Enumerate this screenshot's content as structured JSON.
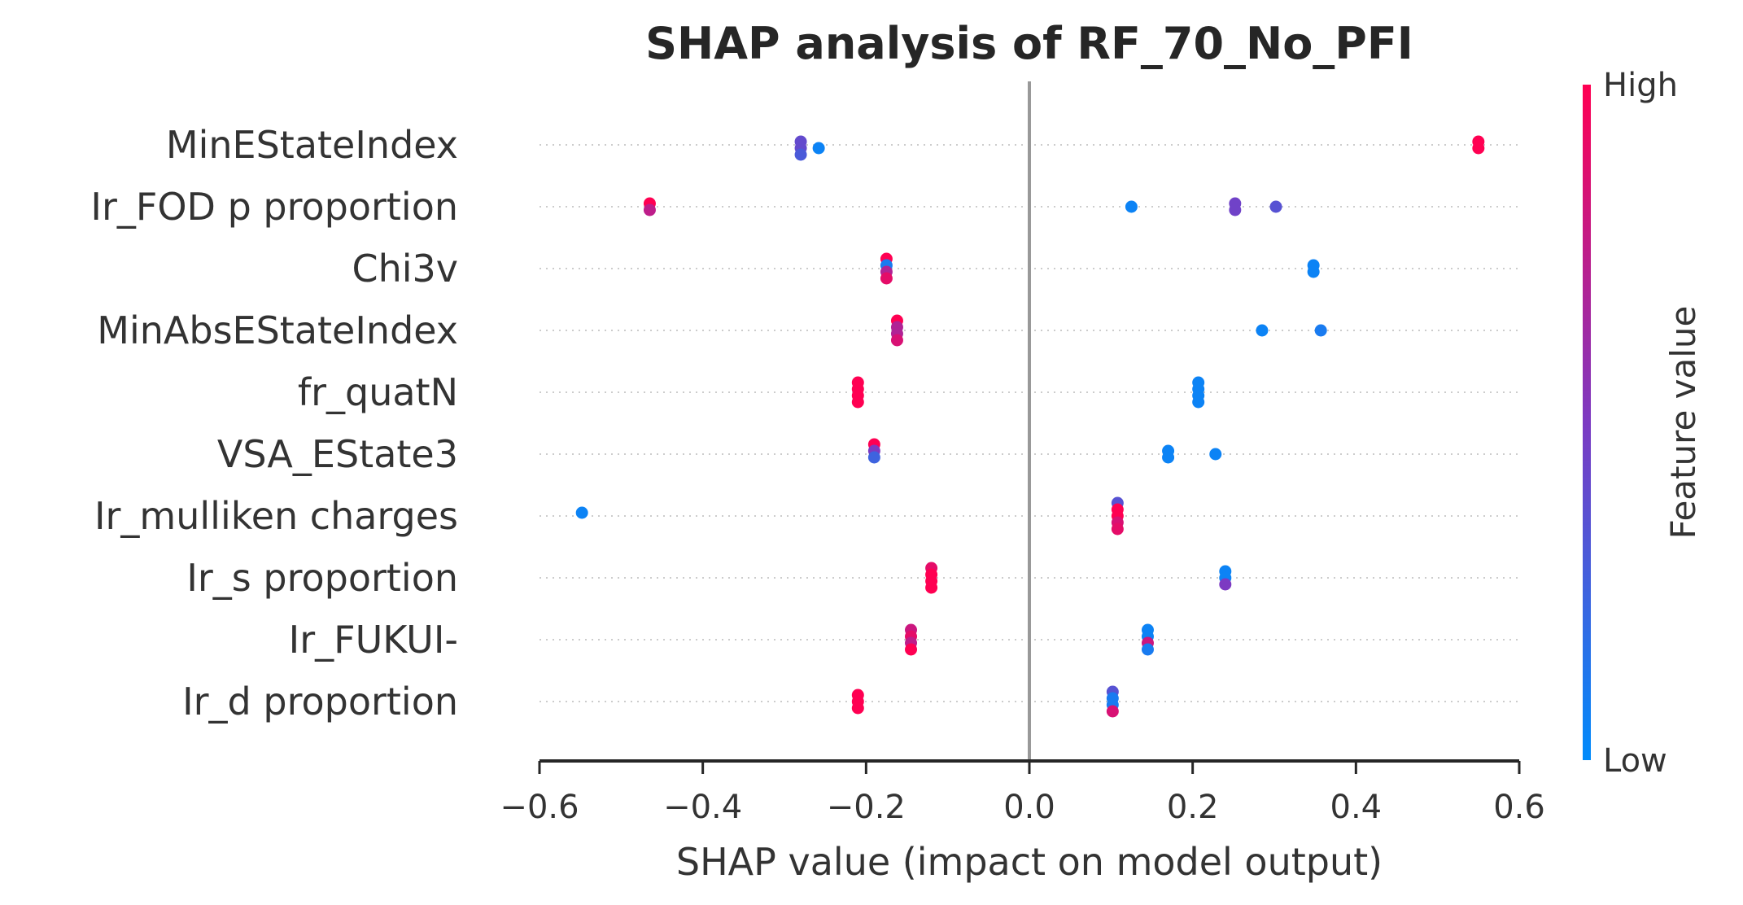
{
  "chart_data": {
    "type": "scatter",
    "subtype": "shap-beeswarm",
    "title": "SHAP analysis of RF_70_No_PFI",
    "xlabel": "SHAP value (impact on model output)",
    "ylabel": "",
    "xlim": [
      -0.6,
      0.6
    ],
    "xticks": [
      -0.6,
      -0.4,
      -0.2,
      0.0,
      0.2,
      0.4,
      0.6
    ],
    "xtick_labels": [
      "−0.6",
      "−0.4",
      "−0.2",
      "0.0",
      "0.2",
      "0.4",
      "0.6"
    ],
    "zero_line": 0.0,
    "colorbar": {
      "label": "Feature value",
      "high_label": "High",
      "low_label": "Low",
      "low_color": "#008bfb",
      "mid_color": "#7c3ac2",
      "high_color": "#ff0052"
    },
    "features": [
      {
        "name": "MinEStateIndex",
        "points": [
          {
            "x": -0.28,
            "dy": -0.5,
            "v": 0.4
          },
          {
            "x": -0.28,
            "dy": 0.5,
            "v": 0.4
          },
          {
            "x": -0.28,
            "dy": 1.5,
            "v": 0.3
          },
          {
            "x": -0.258,
            "dy": 0.5,
            "v": 0.05
          },
          {
            "x": 0.55,
            "dy": -0.5,
            "v": 1.0
          },
          {
            "x": 0.55,
            "dy": 0.5,
            "v": 1.0
          }
        ]
      },
      {
        "name": "Ir_FOD p proportion",
        "points": [
          {
            "x": -0.465,
            "dy": -0.5,
            "v": 1.0
          },
          {
            "x": -0.465,
            "dy": 0.5,
            "v": 0.75
          },
          {
            "x": 0.125,
            "dy": 0.0,
            "v": 0.05
          },
          {
            "x": 0.252,
            "dy": -0.5,
            "v": 0.45
          },
          {
            "x": 0.252,
            "dy": 0.5,
            "v": 0.45
          },
          {
            "x": 0.302,
            "dy": 0.0,
            "v": 0.35
          }
        ]
      },
      {
        "name": "Chi3v",
        "points": [
          {
            "x": -0.175,
            "dy": -1.5,
            "v": 1.0
          },
          {
            "x": -0.175,
            "dy": -0.5,
            "v": 0.1
          },
          {
            "x": -0.175,
            "dy": 0.5,
            "v": 0.7
          },
          {
            "x": -0.175,
            "dy": 1.5,
            "v": 0.9
          },
          {
            "x": 0.348,
            "dy": -0.5,
            "v": 0.05
          },
          {
            "x": 0.348,
            "dy": 0.5,
            "v": 0.05
          }
        ]
      },
      {
        "name": "MinAbsEStateIndex",
        "points": [
          {
            "x": -0.162,
            "dy": -1.5,
            "v": 1.0
          },
          {
            "x": -0.162,
            "dy": -0.5,
            "v": 0.7
          },
          {
            "x": -0.162,
            "dy": 0.5,
            "v": 0.7
          },
          {
            "x": -0.162,
            "dy": 1.5,
            "v": 0.85
          },
          {
            "x": 0.285,
            "dy": 0.0,
            "v": 0.05
          },
          {
            "x": 0.357,
            "dy": 0.0,
            "v": 0.1
          }
        ]
      },
      {
        "name": "fr_quatN",
        "points": [
          {
            "x": -0.21,
            "dy": -1.5,
            "v": 1.0
          },
          {
            "x": -0.21,
            "dy": -0.5,
            "v": 1.0
          },
          {
            "x": -0.21,
            "dy": 0.5,
            "v": 1.0
          },
          {
            "x": -0.21,
            "dy": 1.5,
            "v": 1.0
          },
          {
            "x": 0.207,
            "dy": -1.5,
            "v": 0.05
          },
          {
            "x": 0.207,
            "dy": -0.5,
            "v": 0.05
          },
          {
            "x": 0.207,
            "dy": 0.5,
            "v": 0.05
          },
          {
            "x": 0.207,
            "dy": 1.5,
            "v": 0.05
          }
        ]
      },
      {
        "name": "VSA_EState3",
        "points": [
          {
            "x": -0.19,
            "dy": -1.5,
            "v": 1.0
          },
          {
            "x": -0.19,
            "dy": -0.5,
            "v": 0.5
          },
          {
            "x": -0.19,
            "dy": 0.5,
            "v": 0.25
          },
          {
            "x": 0.17,
            "dy": -0.5,
            "v": 0.05
          },
          {
            "x": 0.17,
            "dy": 0.5,
            "v": 0.05
          },
          {
            "x": 0.228,
            "dy": 0.0,
            "v": 0.05
          }
        ]
      },
      {
        "name": "Ir_mulliken charges",
        "points": [
          {
            "x": -0.548,
            "dy": -0.5,
            "v": 0.05
          },
          {
            "x": 0.108,
            "dy": -2.0,
            "v": 0.35
          },
          {
            "x": 0.108,
            "dy": -1.0,
            "v": 1.0
          },
          {
            "x": 0.108,
            "dy": 0.0,
            "v": 1.0
          },
          {
            "x": 0.108,
            "dy": 1.0,
            "v": 0.85
          },
          {
            "x": 0.108,
            "dy": 2.0,
            "v": 0.9
          }
        ]
      },
      {
        "name": "Ir_s proportion",
        "points": [
          {
            "x": -0.12,
            "dy": -1.5,
            "v": 0.9
          },
          {
            "x": -0.12,
            "dy": -0.5,
            "v": 1.0
          },
          {
            "x": -0.12,
            "dy": 0.5,
            "v": 1.0
          },
          {
            "x": -0.12,
            "dy": 1.5,
            "v": 1.0
          },
          {
            "x": 0.24,
            "dy": -1.0,
            "v": 0.05
          },
          {
            "x": 0.24,
            "dy": 0.0,
            "v": 0.05
          },
          {
            "x": 0.24,
            "dy": 1.0,
            "v": 0.5
          }
        ]
      },
      {
        "name": "Ir_FUKUI-",
        "points": [
          {
            "x": -0.145,
            "dy": -1.5,
            "v": 0.8
          },
          {
            "x": -0.145,
            "dy": -0.5,
            "v": 0.9
          },
          {
            "x": -0.145,
            "dy": 0.5,
            "v": 0.75
          },
          {
            "x": -0.145,
            "dy": 1.5,
            "v": 1.0
          },
          {
            "x": 0.145,
            "dy": -1.5,
            "v": 0.05
          },
          {
            "x": 0.145,
            "dy": -0.5,
            "v": 0.05
          },
          {
            "x": 0.145,
            "dy": 0.5,
            "v": 0.8
          },
          {
            "x": 0.145,
            "dy": 1.5,
            "v": 0.1
          }
        ]
      },
      {
        "name": "Ir_d proportion",
        "points": [
          {
            "x": -0.21,
            "dy": -1.0,
            "v": 1.0
          },
          {
            "x": -0.21,
            "dy": 0.0,
            "v": 1.0
          },
          {
            "x": -0.21,
            "dy": 1.0,
            "v": 1.0
          },
          {
            "x": 0.102,
            "dy": -1.5,
            "v": 0.35
          },
          {
            "x": 0.102,
            "dy": -0.5,
            "v": 0.1
          },
          {
            "x": 0.102,
            "dy": 0.5,
            "v": 0.1
          },
          {
            "x": 0.102,
            "dy": 1.5,
            "v": 0.85
          }
        ]
      }
    ]
  }
}
